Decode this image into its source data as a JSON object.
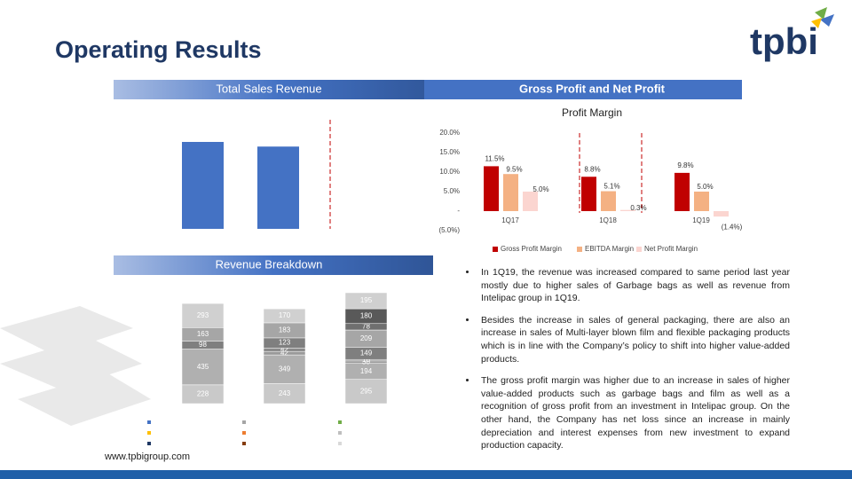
{
  "header": {
    "title": "Operating Results",
    "logo": "tpbi"
  },
  "sections": {
    "sales_header": "Total Sales Revenue",
    "profit_header": "Gross Profit and Net Profit",
    "breakdown_header": "Revenue Breakdown"
  },
  "chart_data": [
    {
      "type": "bar",
      "categories": [
        null,
        null
      ],
      "values": [
        1217,
        1152
      ],
      "color": "#4472c4"
    },
    {
      "type": "grouped_bar",
      "title": "Profit Margin",
      "categories": [
        "1Q17",
        "1Q18",
        "1Q19"
      ],
      "series": [
        {
          "name": "Gross Profit Margin",
          "color": "#c00000",
          "values": [
            11.5,
            8.8,
            9.8
          ],
          "value_labels": [
            "11.5%",
            "8.8%",
            "9.8%"
          ]
        },
        {
          "name": "EBITDA Margin",
          "color": "#f4b183",
          "values": [
            9.5,
            5.1,
            5.0
          ],
          "value_labels": [
            "9.5%",
            "5.1%",
            "5.0%"
          ]
        },
        {
          "name": "Net Profit Margin",
          "color": "#fbd5d0",
          "values": [
            5.0,
            0.3,
            -1.4
          ],
          "value_labels": [
            "5.0%",
            "0.3%",
            "(1.4%)"
          ]
        }
      ],
      "ylim": [
        -5,
        20
      ],
      "yticks": [
        {
          "value": 20,
          "label": "20.0%"
        },
        {
          "value": 15,
          "label": "15.0%"
        },
        {
          "value": 10,
          "label": "10.0%"
        },
        {
          "value": 5,
          "label": "5.0%"
        },
        {
          "value": 0,
          "label": "-"
        },
        {
          "value": -5,
          "label": "(5.0%)"
        }
      ],
      "legend": "bottom"
    },
    {
      "type": "stacked_bar",
      "categories": [
        null,
        null,
        null
      ],
      "series": [
        {
          "color": "#c9c9c9",
          "values": [
            228,
            243,
            295
          ]
        },
        {
          "color": "#b0b0b0",
          "values": [
            435,
            349,
            194
          ]
        },
        {
          "color": "#9a9a9a",
          "values": [
            null,
            42,
            30
          ]
        },
        {
          "color": "#8a8a8a",
          "values": [
            null,
            42,
            18
          ]
        },
        {
          "color": "#7f7f7f",
          "values": [
            98,
            123,
            149
          ]
        },
        {
          "color": "#a6a6a6",
          "values": [
            163,
            183,
            209
          ]
        },
        {
          "color": "#6f6f6f",
          "values": [
            null,
            null,
            78
          ]
        },
        {
          "color": "#595959",
          "values": [
            null,
            null,
            180
          ]
        },
        {
          "color": "#d0d0d0",
          "values": [
            293,
            170,
            195
          ]
        }
      ]
    }
  ],
  "bullets": [
    "In 1Q19, the revenue was increased compared to same period last year mostly due to higher sales of Garbage bags as well as revenue from Intelipac group in 1Q19.",
    "Besides the increase in sales of general packaging, there are also an increase in sales of Multi-layer blown film and flexible packaging products which is in line with the Company’s policy to shift into higher value-added products.",
    "The gross profit margin was higher due to an increase in sales of higher value-added products such as garbage bags and film as well as a recognition of gross profit from an investment in Intelipac group. On the other hand, the Company has net loss since an increase in mainly depreciation and interest expenses from new investment to expand production capacity."
  ],
  "footer": {
    "website": "www.tpbigroup.com"
  }
}
